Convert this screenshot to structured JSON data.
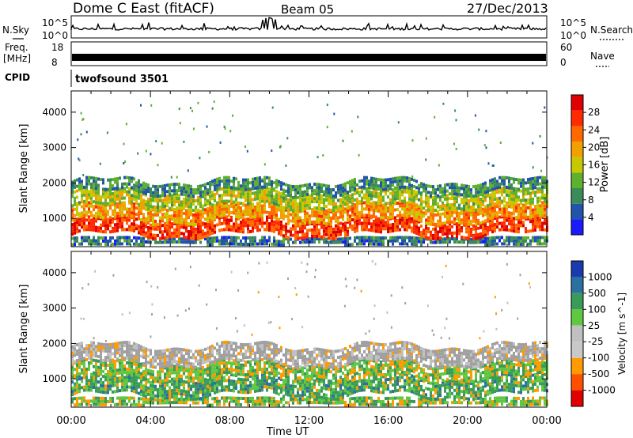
{
  "header": {
    "station": "Dome C East (fitACF)",
    "beam": "Beam 05",
    "date": "27/Dec/2013"
  },
  "side_labels": {
    "nsky": "N.Sky",
    "freq_line1": "Freq.",
    "freq_line2": "[MHz]",
    "cpid": "CPID",
    "nsearch": "N.Search",
    "nave": "Nave"
  },
  "cpid_value": "twofsound 3501",
  "nsky_ticks": [
    "10^5",
    "10^0"
  ],
  "nsearch_ticks": [
    "10^5",
    "10^0"
  ],
  "freq_ticks": [
    "18",
    "8"
  ],
  "nave_ticks": [
    "60",
    "0"
  ],
  "x_tick_labels": [
    "00:00",
    "04:00",
    "08:00",
    "12:00",
    "16:00",
    "20:00",
    "00:00"
  ],
  "x_title": "Time UT",
  "colors": {
    "power_scale": [
      "#1a1aff",
      "#2255aa",
      "#3a8a5a",
      "#60b030",
      "#c8c800",
      "#f0a000",
      "#ff6a00",
      "#ff2a00",
      "#e00000"
    ],
    "velocity_scale": [
      "#e00000",
      "#ff5000",
      "#ff9a00",
      "#c8c8c8",
      "#c0c0c0",
      "#60c840",
      "#3a9a5a",
      "#2a70a0",
      "#1a3ab0"
    ],
    "ground_scatter": "#a0a0a0"
  },
  "chart_data": [
    {
      "type": "heatmap",
      "id": "power",
      "xlabel": "",
      "ylabel": "Slant Range [km]",
      "x_range_hours": [
        0,
        24
      ],
      "ylim": [
        200,
        4600
      ],
      "y_ticks": [
        1000,
        2000,
        3000,
        4000
      ],
      "colorbar": {
        "label": "Power [dB]",
        "ticks": [
          4,
          8,
          12,
          16,
          20,
          24,
          28
        ],
        "range": [
          0,
          30
        ]
      },
      "bands": [
        {
          "range_km": [
            300,
            500
          ],
          "power_db": 6
        },
        {
          "range_km": [
            600,
            1000
          ],
          "power_db": 26
        },
        {
          "range_km": [
            1000,
            1400
          ],
          "power_db": 20
        },
        {
          "range_km": [
            1400,
            1800
          ],
          "power_db": 14
        },
        {
          "range_km": [
            1800,
            2100
          ],
          "power_db": 8
        }
      ],
      "grid": false
    },
    {
      "type": "heatmap",
      "id": "velocity",
      "xlabel": "Time UT",
      "ylabel": "Slant Range [km]",
      "x_range_hours": [
        0,
        24
      ],
      "ylim": [
        200,
        4600
      ],
      "y_ticks": [
        1000,
        2000,
        3000,
        4000
      ],
      "colorbar": {
        "label": "Velocity [m s^-1]",
        "ticks": [
          1000,
          500,
          100,
          25,
          -25,
          -100,
          -500,
          -1000
        ]
      },
      "bands": [
        {
          "range_km": [
            300,
            500
          ],
          "velocity_ms": 50
        },
        {
          "range_km": [
            600,
            1100
          ],
          "velocity_ms": 200
        },
        {
          "range_km": [
            1100,
            1500
          ],
          "velocity_ms": 80
        },
        {
          "range_km": [
            1500,
            2000
          ],
          "velocity_ms": 0
        }
      ],
      "grid": false
    }
  ]
}
